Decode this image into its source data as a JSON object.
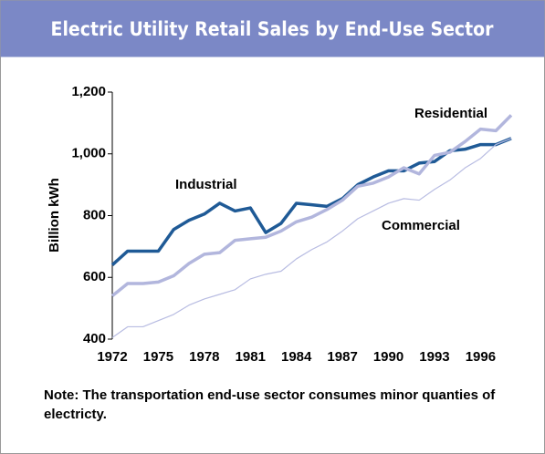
{
  "chart_data": {
    "type": "line",
    "title": "Electric Utility Retail Sales by End-Use Sector",
    "y_label": "Billion kWh",
    "annotations": [
      "Industrial",
      "Residential",
      "Commercial"
    ],
    "note": "Note: The transportation end-use sector consumes minor quanties of electricty.",
    "x": [
      1972,
      1973,
      1974,
      1975,
      1976,
      1977,
      1978,
      1979,
      1980,
      1981,
      1982,
      1983,
      1984,
      1985,
      1986,
      1987,
      1988,
      1989,
      1990,
      1991,
      1992,
      1993,
      1994,
      1995,
      1996,
      1997,
      1998
    ],
    "series": [
      {
        "name": "Industrial",
        "color": "#1f5a96",
        "width": 3.5,
        "values": [
          640,
          685,
          685,
          685,
          755,
          785,
          805,
          840,
          815,
          825,
          745,
          775,
          840,
          835,
          830,
          855,
          900,
          925,
          945,
          945,
          970,
          975,
          1010,
          1015,
          1030,
          1030,
          1050
        ]
      },
      {
        "name": "Residential",
        "color": "#b2b6dd",
        "width": 3.5,
        "values": [
          540,
          580,
          580,
          585,
          605,
          645,
          675,
          680,
          720,
          725,
          730,
          750,
          780,
          795,
          820,
          850,
          895,
          905,
          925,
          955,
          935,
          995,
          1005,
          1040,
          1080,
          1075,
          1125
        ]
      },
      {
        "name": "Commercial",
        "color": "#b8bce2",
        "width": 1.2,
        "values": [
          405,
          440,
          440,
          460,
          480,
          510,
          530,
          545,
          560,
          595,
          610,
          620,
          660,
          690,
          715,
          750,
          790,
          815,
          840,
          855,
          850,
          885,
          915,
          955,
          985,
          1030,
          1050
        ]
      }
    ],
    "xlim": [
      1972,
      1998
    ],
    "xticks": [
      1972,
      1975,
      1978,
      1981,
      1984,
      1987,
      1990,
      1993,
      1996
    ],
    "ylim": [
      400,
      1200
    ],
    "yticks": [
      400,
      600,
      800,
      {
        "value": 1000,
        "label": "1,000"
      },
      {
        "value": 1200,
        "label": "1,200"
      }
    ]
  }
}
